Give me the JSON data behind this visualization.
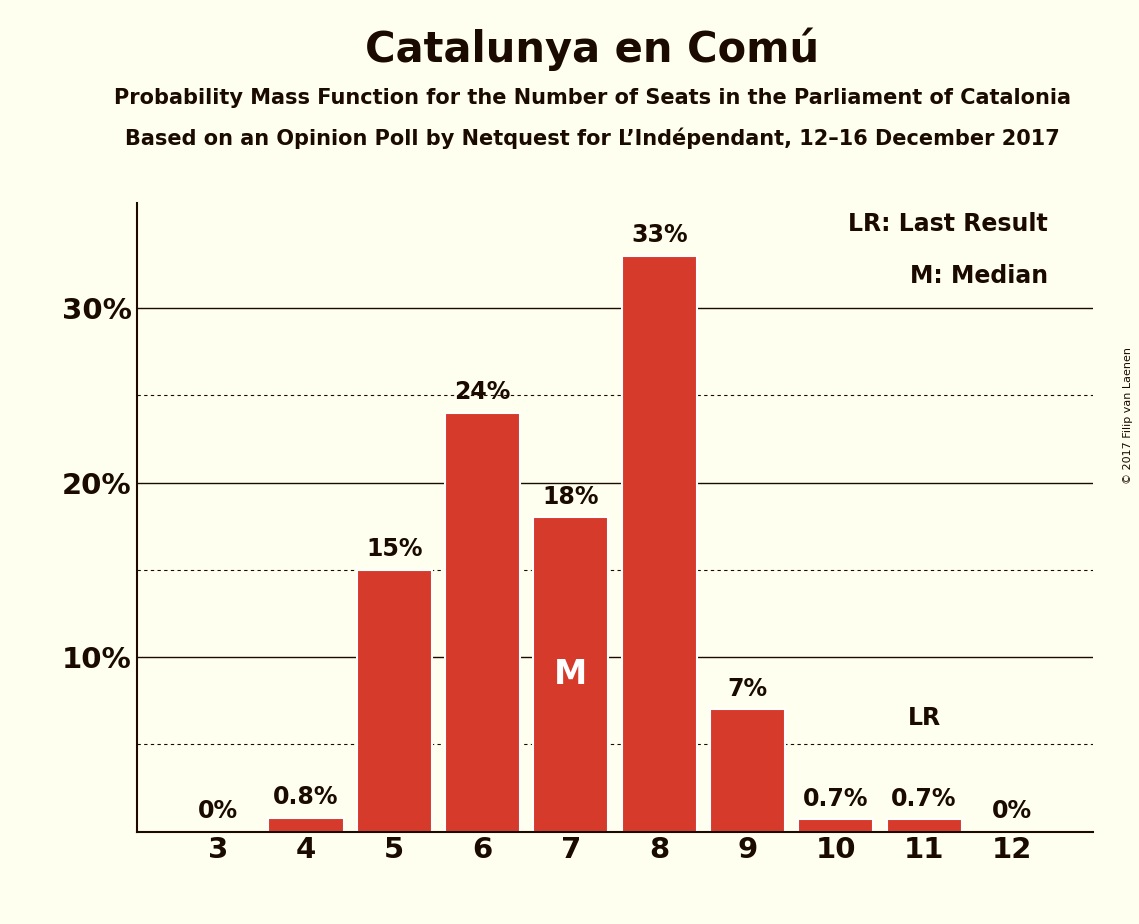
{
  "title": "Catalunya en Comú",
  "subtitle1": "Probability Mass Function for the Number of Seats in the Parliament of Catalonia",
  "subtitle2": "Based on an Opinion Poll by Netquest for L’Indépendant, 12–16 December 2017",
  "copyright": "© 2017 Filip van Laenen",
  "categories": [
    3,
    4,
    5,
    6,
    7,
    8,
    9,
    10,
    11,
    12
  ],
  "values": [
    0.0,
    0.8,
    15.0,
    24.0,
    18.0,
    33.0,
    7.0,
    0.7,
    0.7,
    0.0
  ],
  "bar_labels": [
    "0%",
    "0.8%",
    "15%",
    "24%",
    "18%",
    "33%",
    "7%",
    "0.7%",
    "0.7%",
    "0%"
  ],
  "bar_color": "#d63a2a",
  "bar_edge_color": "#ffffff",
  "background_color": "#fffff0",
  "text_color": "#1a0a00",
  "ylim": [
    0,
    36
  ],
  "yticks": [
    0,
    10,
    20,
    30
  ],
  "ytick_labels": [
    "",
    "10%",
    "20%",
    "30%"
  ],
  "solid_lines": [
    10,
    20,
    30
  ],
  "dotted_lines": [
    5,
    15,
    25
  ],
  "median_seat": 7,
  "median_label": "M",
  "lr_seat": 11,
  "lr_label": "LR",
  "legend_lr": "LR: Last Result",
  "legend_m": "M: Median",
  "title_fontsize": 30,
  "subtitle_fontsize": 15,
  "bar_label_fontsize": 17,
  "axis_label_fontsize": 21,
  "legend_fontsize": 17,
  "median_fontsize": 24
}
